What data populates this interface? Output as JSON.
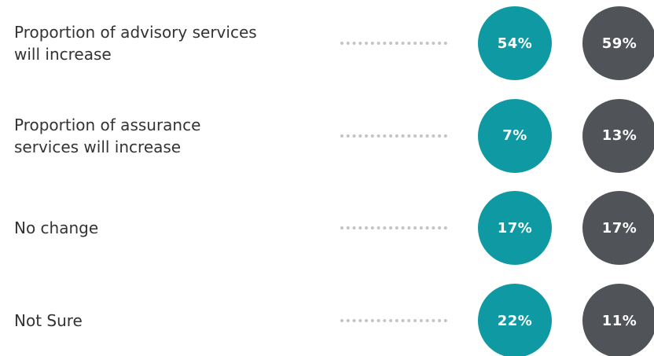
{
  "chart_data": {
    "type": "bubble",
    "categories": [
      "Proportion of advisory services will increase",
      "Proportion of assurance services will increase",
      "No change",
      "Not Sure"
    ],
    "series": [
      {
        "color": "#0f9aa3",
        "values": [
          54,
          7,
          17,
          22
        ],
        "value_labels": [
          "54%",
          "7%",
          "17%",
          "22%"
        ]
      },
      {
        "color": "#505357",
        "values": [
          59,
          13,
          17,
          11
        ],
        "value_labels": [
          "59%",
          "13%",
          "17%",
          "11%"
        ]
      }
    ]
  }
}
